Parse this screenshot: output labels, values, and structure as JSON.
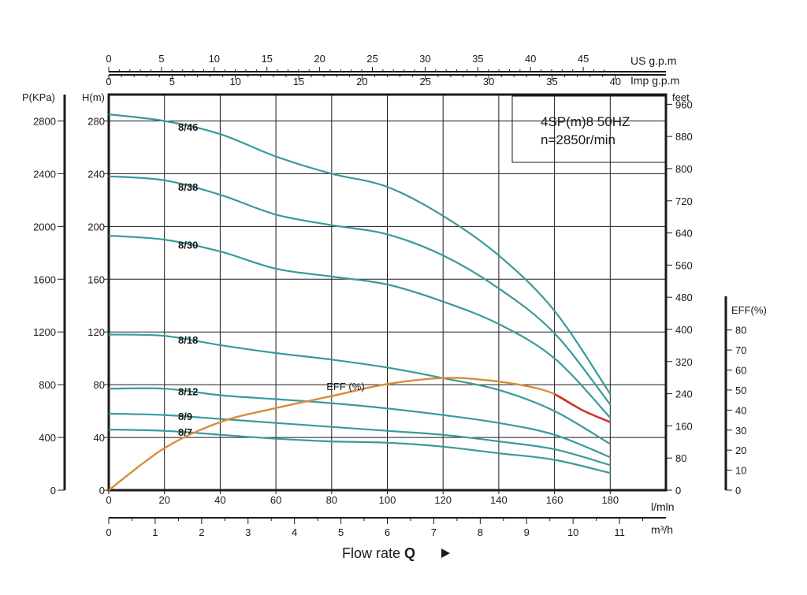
{
  "chart_data": {
    "type": "line",
    "title": "4SP(m)8  50HZ",
    "subtitle": "n=2850r/min",
    "xlabel": "Flow rate Q",
    "x_unit": "l/mln",
    "x_range": [
      0,
      200
    ],
    "x_ticks": [
      0,
      20,
      40,
      60,
      80,
      100,
      120,
      140,
      160,
      180
    ],
    "y_unit": "H(m)",
    "y_range": [
      0,
      300
    ],
    "y_ticks": [
      0,
      40,
      80,
      120,
      160,
      200,
      240,
      280
    ],
    "grid": true,
    "series": [
      {
        "name": "8/46",
        "color": "#3a9a9a",
        "points": [
          [
            0,
            285
          ],
          [
            20,
            280
          ],
          [
            40,
            270
          ],
          [
            60,
            253
          ],
          [
            80,
            240
          ],
          [
            100,
            230
          ],
          [
            120,
            208
          ],
          [
            140,
            178
          ],
          [
            160,
            136
          ],
          [
            180,
            73
          ]
        ]
      },
      {
        "name": "8/38",
        "color": "#3a9a9a",
        "points": [
          [
            0,
            238
          ],
          [
            20,
            235
          ],
          [
            40,
            224
          ],
          [
            60,
            209
          ],
          [
            80,
            201
          ],
          [
            100,
            194
          ],
          [
            120,
            178
          ],
          [
            140,
            153
          ],
          [
            160,
            119
          ],
          [
            180,
            65
          ]
        ]
      },
      {
        "name": "8/30",
        "color": "#3a9a9a",
        "points": [
          [
            0,
            193
          ],
          [
            20,
            190
          ],
          [
            40,
            181
          ],
          [
            60,
            168
          ],
          [
            80,
            162
          ],
          [
            100,
            156
          ],
          [
            120,
            143
          ],
          [
            140,
            126
          ],
          [
            160,
            100
          ],
          [
            180,
            55
          ]
        ]
      },
      {
        "name": "8/18",
        "color": "#3a9a9a",
        "points": [
          [
            0,
            118
          ],
          [
            20,
            117
          ],
          [
            40,
            110
          ],
          [
            60,
            104
          ],
          [
            80,
            99
          ],
          [
            100,
            93
          ],
          [
            120,
            85
          ],
          [
            140,
            76
          ],
          [
            160,
            60
          ],
          [
            180,
            35
          ]
        ]
      },
      {
        "name": "8/12",
        "color": "#3a9a9a",
        "points": [
          [
            0,
            77
          ],
          [
            20,
            77
          ],
          [
            40,
            72
          ],
          [
            60,
            69
          ],
          [
            80,
            66
          ],
          [
            100,
            62
          ],
          [
            120,
            57
          ],
          [
            140,
            51
          ],
          [
            160,
            42
          ],
          [
            180,
            25
          ]
        ]
      },
      {
        "name": "8/9",
        "color": "#3a9a9a",
        "points": [
          [
            0,
            58
          ],
          [
            20,
            57
          ],
          [
            40,
            54
          ],
          [
            60,
            51
          ],
          [
            80,
            48
          ],
          [
            100,
            45
          ],
          [
            120,
            42
          ],
          [
            140,
            37
          ],
          [
            160,
            31
          ],
          [
            180,
            19
          ]
        ]
      },
      {
        "name": "8/7",
        "color": "#3a9a9a",
        "points": [
          [
            0,
            46
          ],
          [
            20,
            45
          ],
          [
            40,
            42
          ],
          [
            60,
            39
          ],
          [
            80,
            37
          ],
          [
            100,
            36
          ],
          [
            120,
            33
          ],
          [
            140,
            28
          ],
          [
            160,
            23
          ],
          [
            180,
            13
          ]
        ]
      }
    ],
    "efficiency": {
      "name": "EFF (%)",
      "color": "#d98c3a",
      "red_color": "#cc3333",
      "points": [
        [
          0,
          0
        ],
        [
          20,
          21
        ],
        [
          40,
          34
        ],
        [
          60,
          41
        ],
        [
          80,
          47
        ],
        [
          100,
          53
        ],
        [
          120,
          56
        ],
        [
          135,
          55
        ],
        [
          150,
          52
        ],
        [
          160,
          48
        ],
        [
          170,
          40
        ],
        [
          180,
          34
        ]
      ],
      "red_from": 160
    },
    "left_axes": {
      "p_label": "P(KPa)",
      "p_ticks": [
        0,
        400,
        800,
        1200,
        1600,
        2000,
        2400,
        2800
      ],
      "h_label": "H(m)"
    },
    "right_axes": {
      "feet_label": "feet",
      "feet_ticks": [
        0,
        80,
        160,
        240,
        320,
        400,
        480,
        560,
        640,
        720,
        800,
        880,
        960
      ],
      "eff_label": "EFF(%)",
      "eff_ticks": [
        0,
        10,
        20,
        30,
        40,
        50,
        60,
        70,
        80
      ]
    },
    "top_axes": {
      "us_label": "US g.p.m",
      "us_ticks": [
        0,
        5,
        10,
        15,
        20,
        25,
        30,
        35,
        40,
        45
      ],
      "imp_label": "Imp g.p.m",
      "imp_ticks": [
        0,
        5,
        10,
        15,
        20,
        25,
        30,
        35,
        40
      ]
    },
    "bottom_axes": {
      "m3h_label": "m³/h",
      "m3h_ticks": [
        0,
        1,
        2,
        3,
        4,
        5,
        6,
        7,
        8,
        9,
        10,
        11
      ]
    }
  },
  "colors": {
    "axis": "#1a1a1a",
    "grid": "#1a1a1a",
    "curve": "#3a9a9a",
    "eff": "#d98c3a",
    "eff_high": "#cc3333"
  },
  "texts": {
    "flow_main": "Flow rate",
    "flow_q": "Q",
    "arrow_icon": "play-arrow-icon",
    "eff_curve_label": "EFF (%)"
  }
}
